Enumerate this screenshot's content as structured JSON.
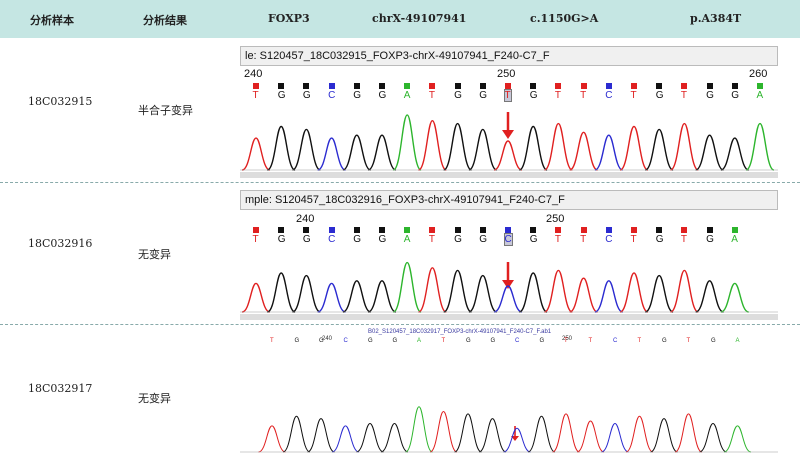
{
  "header": {
    "col1": "分析样本",
    "col2": "分析结果",
    "col3": "FOXP3",
    "col4": "chrX-49107941",
    "col5": "c.1150G>A",
    "col6": "p.A384T"
  },
  "rows": [
    {
      "sample": "18C032915",
      "result": "半合子变异",
      "title": "le: S120457_18C032915_FOXP3-chrX-49107941_F240-C7_F",
      "pos_labels": [
        "240",
        "250",
        "260"
      ],
      "bases": [
        "T",
        "G",
        "G",
        "C",
        "G",
        "G",
        "A",
        "T",
        "G",
        "G",
        "T",
        "G",
        "T",
        "T",
        "C",
        "T",
        "G",
        "T",
        "G",
        "G",
        "A"
      ]
    },
    {
      "sample": "18C032916",
      "result": "无变异",
      "title": "mple: S120457_18C032916_FOXP3-chrX-49107941_F240-C7_F",
      "pos_labels": [
        "240",
        "250"
      ],
      "bases": [
        "T",
        "G",
        "G",
        "C",
        "G",
        "G",
        "A",
        "T",
        "G",
        "G",
        "C",
        "G",
        "T",
        "T",
        "C",
        "T",
        "G",
        "T",
        "G",
        "A"
      ]
    },
    {
      "sample": "18C032917",
      "result": "无变异",
      "title": "B02_S120457_18C032917_FOXP3-chrX-49107941_F240-C7_F.ab1",
      "pos_labels": [
        "240",
        "250"
      ],
      "bases": [
        "T",
        "G",
        "G",
        "C",
        "G",
        "G",
        "A",
        "T",
        "G",
        "G",
        "C",
        "G",
        "T",
        "T",
        "C",
        "T",
        "G",
        "T",
        "G",
        "A"
      ]
    }
  ],
  "colors": {
    "A": "#2db52d",
    "C": "#2b2bd0",
    "G": "#111111",
    "T": "#e02020",
    "arrow": "#e02020",
    "header_bg": "#c5e6e3"
  }
}
